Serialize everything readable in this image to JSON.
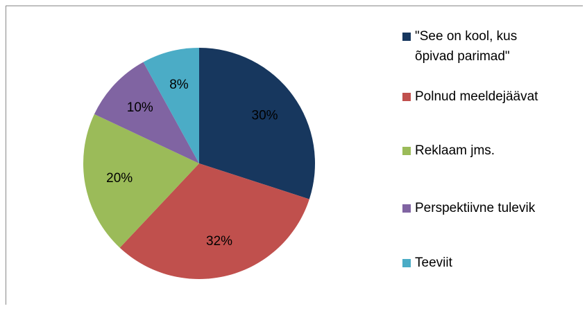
{
  "chart_data": {
    "type": "pie",
    "categories": [
      "\"See on kool, kus õpivad parimad\"",
      "Polnud meeldejäävat",
      "Reklaam jms.",
      "Perspektiivne tulevik",
      "Teeviit"
    ],
    "values": [
      30,
      32,
      20,
      10,
      8
    ],
    "value_labels": [
      "30%",
      "32%",
      "20%",
      "10%",
      "8%"
    ],
    "colors": [
      "#17375e",
      "#c0504d",
      "#9bbb59",
      "#8064a2",
      "#4bacc6"
    ],
    "legend": "right"
  }
}
